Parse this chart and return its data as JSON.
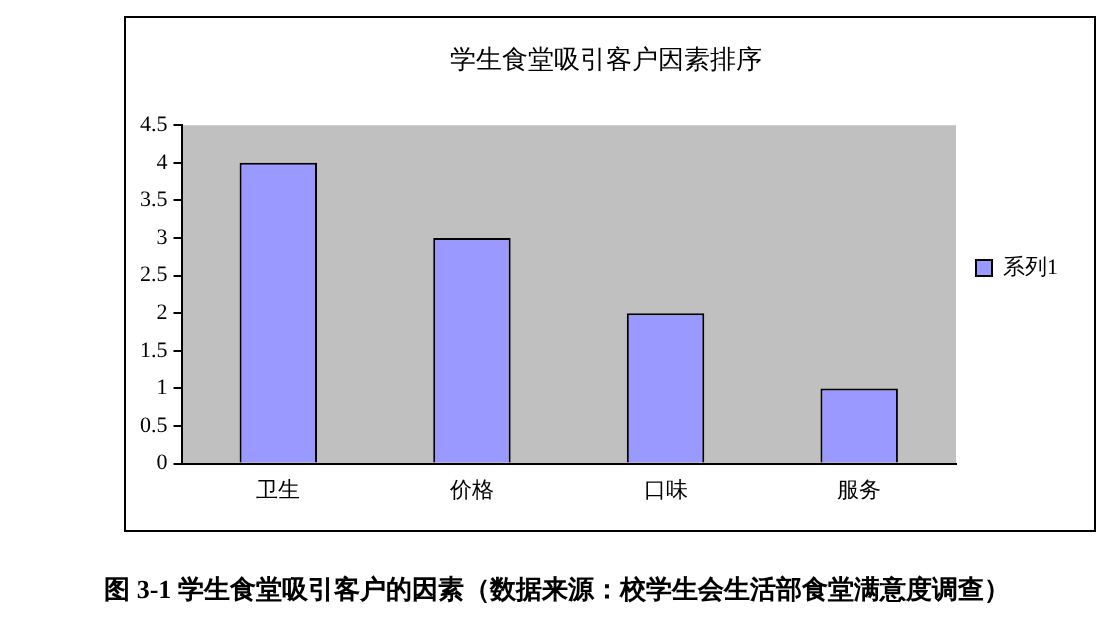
{
  "chart_data": {
    "type": "bar",
    "title": "学生食堂吸引客户因素排序",
    "categories": [
      "卫生",
      "价格",
      "口味",
      "服务"
    ],
    "series": [
      {
        "name": "系列1",
        "color": "#9999ff",
        "values": [
          4,
          3,
          2,
          1
        ]
      }
    ],
    "ylim": [
      0,
      4.5
    ],
    "yticks": [
      0,
      0.5,
      1,
      1.5,
      2,
      2.5,
      3,
      3.5,
      4,
      4.5
    ],
    "grid": false,
    "legend": "right",
    "annotations": [
      "图 3-1 学生食堂吸引客户的因素（数据来源：校学生会生活部食堂满意度调查）"
    ]
  }
}
